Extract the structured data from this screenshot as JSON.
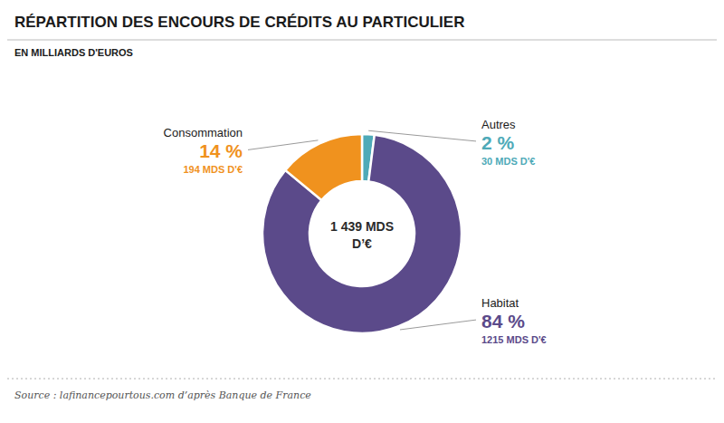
{
  "chart_data": {
    "type": "donut",
    "title": "RÉPARTITION DES ENCOURS DE CRÉDITS AU PARTICULIER",
    "subtitle": "EN MILLIARDS D'EUROS",
    "categories": [
      "Autres",
      "Habitat",
      "Consommation"
    ],
    "values": [
      2,
      84,
      14
    ],
    "value_labels": [
      "2 %",
      "84 %",
      "14 %"
    ],
    "colors": [
      "#4eaab8",
      "#5b4a8a",
      "#f0921e"
    ],
    "data_labels": true,
    "amounts": [
      30,
      1215,
      194
    ],
    "amount_labels": [
      "30 MDS D'€",
      "1215 MDS D'€",
      "194 MDS D'€"
    ],
    "annotations": [
      "1 439 MDS",
      "D’€"
    ],
    "source": "Source : lafinancepourtous.com d’après Banque de France"
  }
}
